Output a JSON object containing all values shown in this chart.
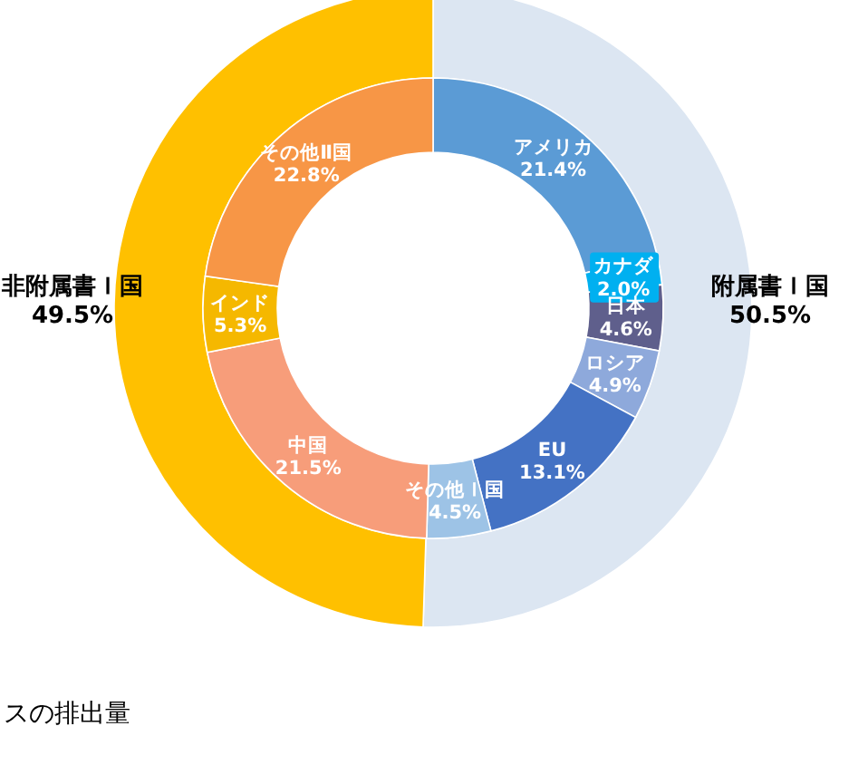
{
  "chart_data": [
    {
      "type": "donut",
      "categories": [
        "附属書Ｉ国",
        "非附属書Ｉ国"
      ],
      "values": [
        50.5,
        49.5
      ],
      "value_labels": [
        "50.5%",
        "49.5%"
      ],
      "colors": [
        "#dce6f2",
        "#ffc000"
      ],
      "annotations": [
        "スの排出量"
      ]
    },
    {
      "type": "donut",
      "categories": [
        "アメリカ",
        "カナダ",
        "日本",
        "ロシア",
        "EU",
        "その他Ｉ国",
        "中国",
        "インド",
        "その他Ⅱ国"
      ],
      "values": [
        21.4,
        2.0,
        4.6,
        4.9,
        13.1,
        4.5,
        21.5,
        5.3,
        22.8
      ],
      "value_labels": [
        "21.4%",
        "2.0%",
        "4.6%",
        "4.9%",
        "13.1%",
        "4.5%",
        "21.5%",
        "5.3%",
        "22.8%"
      ],
      "colors": [
        "#5b9bd5",
        "#00b0f0",
        "#5f5f8c",
        "#8ea9db",
        "#4472c4",
        "#9dc3e6",
        "#f79d7a",
        "#f5b800",
        "#f79646"
      ]
    }
  ]
}
